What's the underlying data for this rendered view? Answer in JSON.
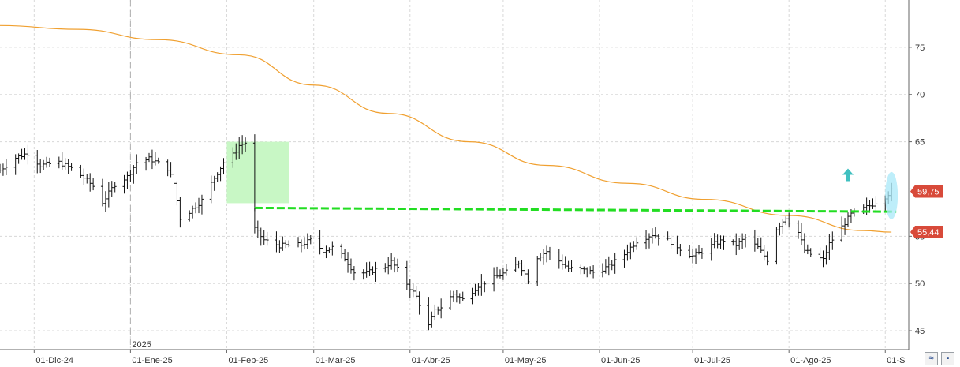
{
  "chart_data": {
    "type": "candlestick",
    "title": "",
    "xlabel": "",
    "ylabel": "",
    "ylim": [
      43,
      80
    ],
    "y_ticks": [
      45,
      50,
      55,
      60,
      65,
      70,
      75
    ],
    "x_ticks": [
      {
        "date": "2024-12-01",
        "label": "01-Dic-24"
      },
      {
        "date": "2025-01-01",
        "label": "01-Ene-25"
      },
      {
        "date": "2025-02-01",
        "label": "01-Feb-25"
      },
      {
        "date": "2025-03-01",
        "label": "01-Mar-25"
      },
      {
        "date": "2025-04-01",
        "label": "01-Abr-25"
      },
      {
        "date": "2025-05-01",
        "label": "01-May-25"
      },
      {
        "date": "2025-06-01",
        "label": "01-Jun-25"
      },
      {
        "date": "2025-07-01",
        "label": "01-Jul-25"
      },
      {
        "date": "2025-08-01",
        "label": "01-Ago-25"
      },
      {
        "date": "2025-09-01",
        "label": "01-S"
      }
    ],
    "year_marker": {
      "date": "2025-01-01",
      "label": "2025"
    },
    "x_range": [
      "2024-11-20",
      "2025-09-05"
    ],
    "grid": true,
    "price_path": [
      [
        "2024-11-20",
        62.0
      ],
      [
        "2024-11-25",
        63.3
      ],
      [
        "2024-11-29",
        63.8
      ],
      [
        "2024-12-03",
        62.5
      ],
      [
        "2024-12-09",
        62.8
      ],
      [
        "2024-12-13",
        62.2
      ],
      [
        "2024-12-17",
        61.2
      ],
      [
        "2024-12-20",
        60.3
      ],
      [
        "2024-12-23",
        58.6
      ],
      [
        "2024-12-27",
        60.5
      ],
      [
        "2024-12-31",
        61.3
      ],
      [
        "2025-01-03",
        62.8
      ],
      [
        "2025-01-07",
        63.2
      ],
      [
        "2025-01-09",
        62.9
      ],
      [
        "2025-01-13",
        62.2
      ],
      [
        "2025-01-15",
        60.6
      ],
      [
        "2025-01-17",
        56.9
      ],
      [
        "2025-01-20",
        57.6
      ],
      [
        "2025-01-24",
        58.8
      ],
      [
        "2025-01-28",
        61.2
      ],
      [
        "2025-01-31",
        62.8
      ],
      [
        "2025-02-03",
        63.6
      ],
      [
        "2025-02-05",
        64.6
      ],
      [
        "2025-02-07",
        64.9
      ],
      [
        "2025-02-10",
        55.8
      ],
      [
        "2025-02-13",
        54.6
      ],
      [
        "2025-02-18",
        54.0
      ],
      [
        "2025-02-25",
        54.1
      ],
      [
        "2025-02-28",
        54.6
      ],
      [
        "2025-03-04",
        53.5
      ],
      [
        "2025-03-07",
        53.8
      ],
      [
        "2025-03-11",
        52.7
      ],
      [
        "2025-03-14",
        51.2
      ],
      [
        "2025-03-18",
        51.1
      ],
      [
        "2025-03-21",
        51.5
      ],
      [
        "2025-03-24",
        51.8
      ],
      [
        "2025-03-26",
        52.3
      ],
      [
        "2025-03-28",
        51.5
      ],
      [
        "2025-03-31",
        50.0
      ],
      [
        "2025-04-03",
        48.6
      ],
      [
        "2025-04-07",
        45.5
      ],
      [
        "2025-04-09",
        47.1
      ],
      [
        "2025-04-11",
        47.5
      ],
      [
        "2025-04-15",
        48.9
      ],
      [
        "2025-04-18",
        48.3
      ],
      [
        "2025-04-23",
        49.8
      ],
      [
        "2025-04-28",
        50.6
      ],
      [
        "2025-05-02",
        51.2
      ],
      [
        "2025-05-06",
        52.2
      ],
      [
        "2025-05-09",
        50.4
      ],
      [
        "2025-05-12",
        52.8
      ],
      [
        "2025-05-15",
        53.4
      ],
      [
        "2025-05-19",
        52.4
      ],
      [
        "2025-05-22",
        51.6
      ],
      [
        "2025-05-27",
        51.4
      ],
      [
        "2025-05-30",
        51.2
      ],
      [
        "2025-06-04",
        51.8
      ],
      [
        "2025-06-09",
        53.1
      ],
      [
        "2025-06-13",
        54.5
      ],
      [
        "2025-06-18",
        55.2
      ],
      [
        "2025-06-23",
        54.6
      ],
      [
        "2025-06-27",
        53.7
      ],
      [
        "2025-07-01",
        52.9
      ],
      [
        "2025-07-04",
        53.4
      ],
      [
        "2025-07-08",
        54.2
      ],
      [
        "2025-07-11",
        54.6
      ],
      [
        "2025-07-15",
        54.1
      ],
      [
        "2025-07-18",
        54.8
      ],
      [
        "2025-07-22",
        53.8
      ],
      [
        "2025-07-25",
        52.5
      ],
      [
        "2025-07-28",
        55.8
      ],
      [
        "2025-07-31",
        57.0
      ],
      [
        "2025-08-04",
        55.4
      ],
      [
        "2025-08-06",
        53.5
      ],
      [
        "2025-08-08",
        53.1
      ],
      [
        "2025-08-12",
        52.5
      ],
      [
        "2025-08-14",
        54.2
      ],
      [
        "2025-08-18",
        56.0
      ],
      [
        "2025-08-21",
        57.3
      ],
      [
        "2025-08-25",
        57.9
      ],
      [
        "2025-08-28",
        58.4
      ],
      [
        "2025-09-01",
        59.2
      ],
      [
        "2025-09-03",
        59.8
      ]
    ],
    "moving_average": {
      "color": "#f0a030",
      "points": [
        [
          "2024-11-20",
          77.3
        ],
        [
          "2024-12-15",
          76.9
        ],
        [
          "2025-01-10",
          75.8
        ],
        [
          "2025-02-05",
          74.2
        ],
        [
          "2025-03-01",
          71.0
        ],
        [
          "2025-03-25",
          68.0
        ],
        [
          "2025-04-20",
          65.0
        ],
        [
          "2025-05-15",
          62.5
        ],
        [
          "2025-06-10",
          60.6
        ],
        [
          "2025-07-05",
          58.9
        ],
        [
          "2025-08-01",
          57.2
        ],
        [
          "2025-08-25",
          55.6
        ],
        [
          "2025-09-03",
          55.44
        ]
      ]
    },
    "resistance_line": {
      "color": "#22dd22",
      "start": "2025-02-10",
      "end": "2025-09-03",
      "y_start": 58.0,
      "y_end": 57.6
    },
    "highlight_box": {
      "color": "#c8f7c5",
      "x_start": "2025-02-01",
      "x_end": "2025-02-21",
      "y_low": 58.5,
      "y_high": 65.0
    },
    "signal_arrow": {
      "color": "#40c0c0",
      "date": "2025-08-20",
      "y": 61.5
    },
    "highlight_ellipse": {
      "color": "#a8e8f8",
      "date": "2025-09-03",
      "y_low": 56.8,
      "y_high": 61.8
    },
    "price_labels": [
      {
        "label": "59,75",
        "value": 59.75,
        "color": "#d84a3a"
      },
      {
        "label": "55,44",
        "value": 55.44,
        "color": "#d84a3a"
      }
    ]
  },
  "toolbar": {
    "icons": [
      "chart-toggle-icon",
      "save-icon"
    ]
  }
}
